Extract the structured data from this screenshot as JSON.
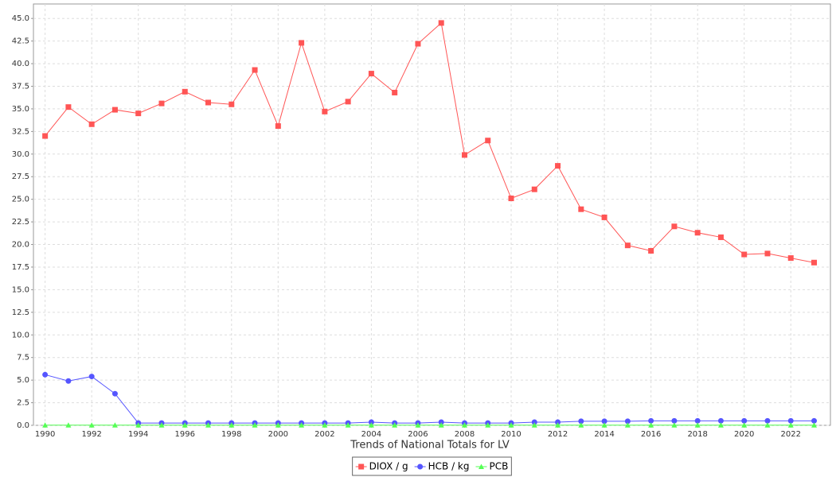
{
  "chart_data": {
    "type": "line",
    "x_label": "Trends of National Totals for LV",
    "x": [
      1990,
      1991,
      1992,
      1993,
      1994,
      1995,
      1996,
      1997,
      1998,
      1999,
      2000,
      2001,
      2002,
      2003,
      2004,
      2005,
      2006,
      2007,
      2008,
      2009,
      2010,
      2011,
      2012,
      2013,
      2014,
      2015,
      2016,
      2017,
      2018,
      2019,
      2020,
      2021,
      2022,
      2023
    ],
    "series": [
      {
        "name": "DIOX / g",
        "color": "#ff5555",
        "marker": "square",
        "values": [
          32.0,
          35.2,
          33.3,
          34.9,
          34.5,
          35.6,
          36.9,
          35.7,
          35.5,
          39.3,
          33.1,
          42.3,
          34.7,
          35.8,
          38.9,
          36.8,
          42.2,
          44.5,
          29.9,
          31.5,
          25.1,
          26.1,
          28.7,
          23.9,
          23.0,
          19.9,
          19.3,
          22.0,
          21.3,
          20.8,
          18.9,
          19.0,
          18.5,
          18.0
        ]
      },
      {
        "name": "HCB / kg",
        "color": "#5555ff",
        "marker": "circle",
        "values": [
          5.6,
          4.9,
          5.4,
          3.5,
          0.25,
          0.25,
          0.25,
          0.25,
          0.25,
          0.25,
          0.25,
          0.25,
          0.25,
          0.25,
          0.35,
          0.25,
          0.25,
          0.35,
          0.25,
          0.25,
          0.25,
          0.35,
          0.35,
          0.45,
          0.45,
          0.45,
          0.5,
          0.5,
          0.5,
          0.5,
          0.5,
          0.5,
          0.5,
          0.5
        ]
      },
      {
        "name": "PCB",
        "color": "#55ff55",
        "marker": "triangle",
        "values": [
          0.02,
          0.02,
          0.02,
          0.02,
          0.02,
          0.02,
          0.02,
          0.02,
          0.02,
          0.02,
          0.02,
          0.02,
          0.02,
          0.02,
          0.02,
          0.02,
          0.02,
          0.02,
          0.02,
          0.02,
          0.02,
          0.02,
          0.02,
          0.02,
          0.02,
          0.02,
          0.02,
          0.02,
          0.02,
          0.02,
          0.02,
          0.02,
          0.02,
          0.02
        ]
      }
    ],
    "xlim": [
      1989.5,
      2023.7
    ],
    "xticks": [
      1990,
      1992,
      1994,
      1996,
      1998,
      2000,
      2002,
      2004,
      2006,
      2008,
      2010,
      2012,
      2014,
      2016,
      2018,
      2020,
      2022
    ],
    "ylim": [
      0,
      46.6
    ],
    "yticks": [
      {
        "value": 0,
        "label": "0.0"
      },
      {
        "value": 2.5,
        "label": "2.5"
      },
      {
        "value": 5,
        "label": "5.0"
      },
      {
        "value": 7.5,
        "label": "7.5"
      },
      {
        "value": 10,
        "label": "10.0"
      },
      {
        "value": 12.5,
        "label": "12.5"
      },
      {
        "value": 15,
        "label": "15.0"
      },
      {
        "value": 17.5,
        "label": "17.5"
      },
      {
        "value": 20,
        "label": "20.0"
      },
      {
        "value": 22.5,
        "label": "22.5"
      },
      {
        "value": 25,
        "label": "25.0"
      },
      {
        "value": 27.5,
        "label": "27.5"
      },
      {
        "value": 30,
        "label": "30.0"
      },
      {
        "value": 32.5,
        "label": "32.5"
      },
      {
        "value": 35,
        "label": "35.0"
      },
      {
        "value": 37.5,
        "label": "37.5"
      },
      {
        "value": 40,
        "label": "40.0"
      },
      {
        "value": 42.5,
        "label": "42.5"
      },
      {
        "value": 45,
        "label": "45.0"
      }
    ],
    "grid": true
  }
}
